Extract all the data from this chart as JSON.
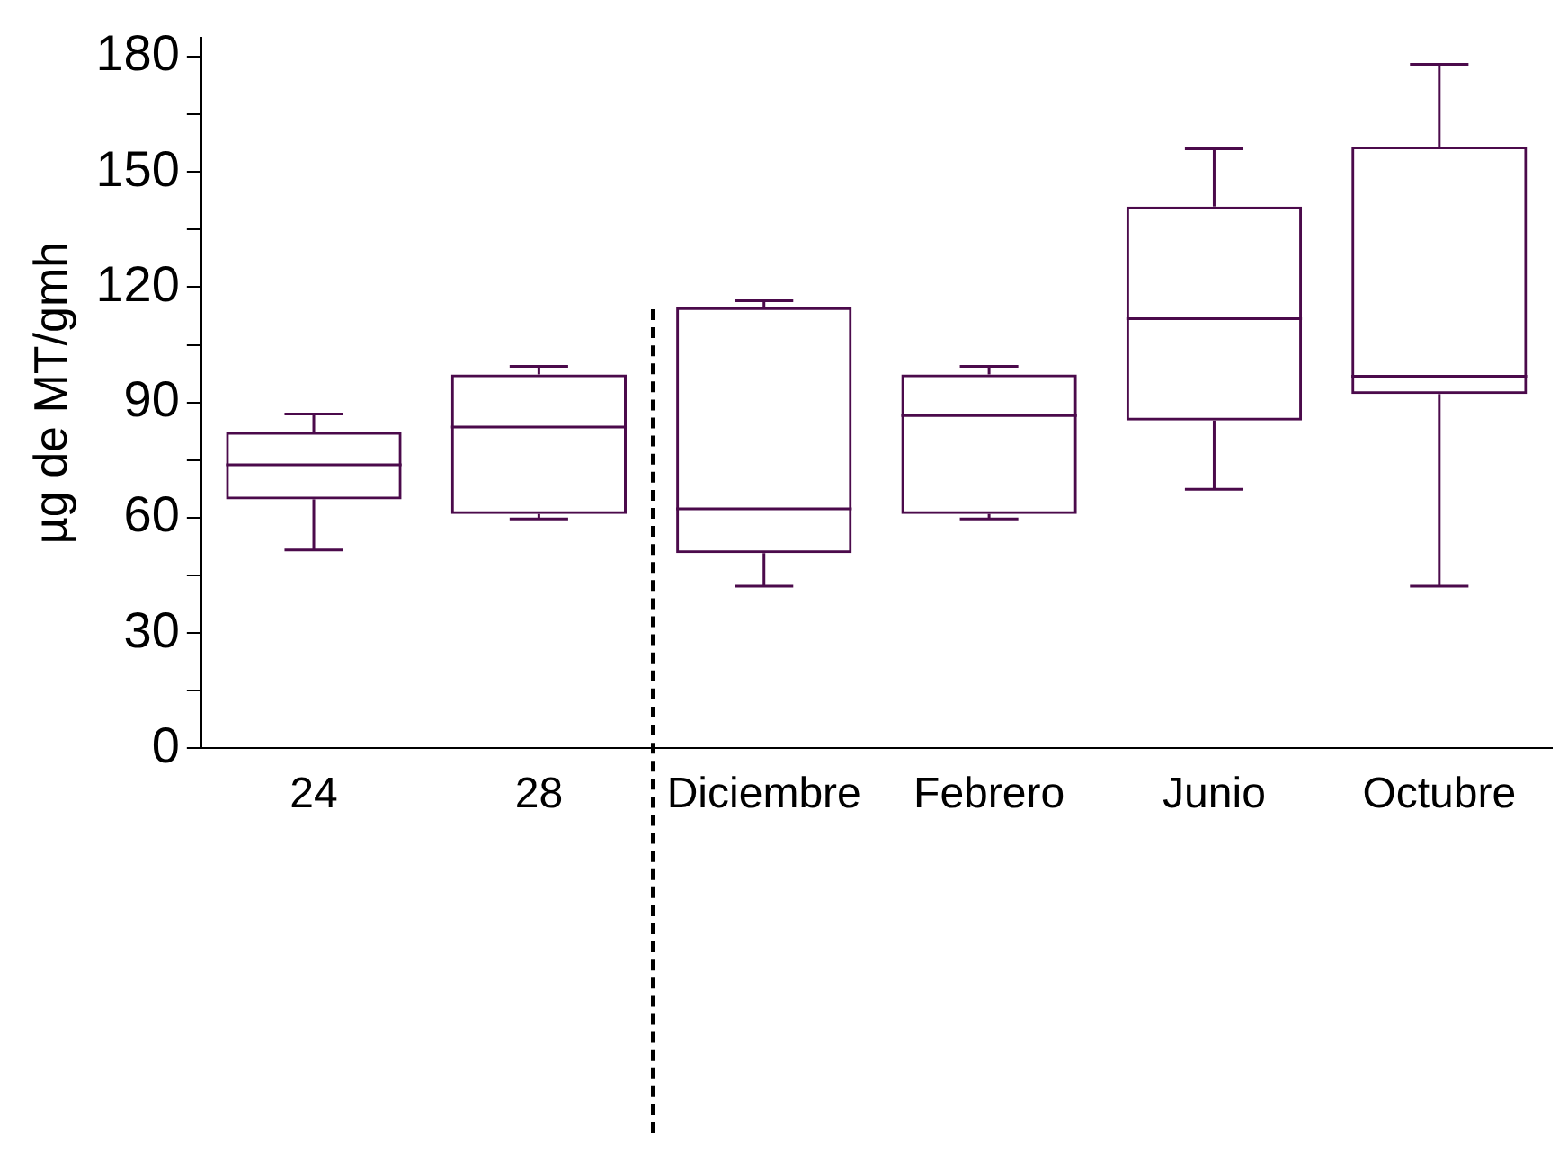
{
  "chart_data": {
    "type": "box",
    "ylabel": "µg de MT/gmh",
    "categories": [
      "24",
      "28",
      "Diciembre",
      "Febrero",
      "Junio",
      "Octubre"
    ],
    "color": "#4b0a4b",
    "grid": false,
    "ylim": [
      0,
      185
    ],
    "yticks": [
      0,
      {
        "value": 15,
        "label": null
      },
      30,
      {
        "value": 45,
        "label": null
      },
      60,
      {
        "value": 75,
        "label": null
      },
      90,
      {
        "value": 105,
        "label": null
      },
      120,
      {
        "value": 135,
        "label": null
      },
      150,
      {
        "value": 165,
        "label": null
      },
      180
    ],
    "boxes": [
      {
        "low": 51.6,
        "q1": 64.8,
        "median": 73.8,
        "q3": 82.3,
        "high": 87
      },
      {
        "low": 59.7,
        "q1": 61,
        "median": 83.6,
        "q3": 97.3,
        "high": 99.4
      },
      {
        "low": 42.2,
        "q1": 50.8,
        "median": 62.3,
        "q3": 114.8,
        "high": 116.5
      },
      {
        "low": 59.7,
        "q1": 61,
        "median": 86.6,
        "q3": 97.3,
        "high": 99.4
      },
      {
        "low": 67.4,
        "q1": 85.3,
        "median": 111.8,
        "q3": 141,
        "high": 156
      },
      {
        "low": 42.2,
        "q1": 92.2,
        "median": 96.8,
        "q3": 156.6,
        "high": 178
      }
    ]
  }
}
